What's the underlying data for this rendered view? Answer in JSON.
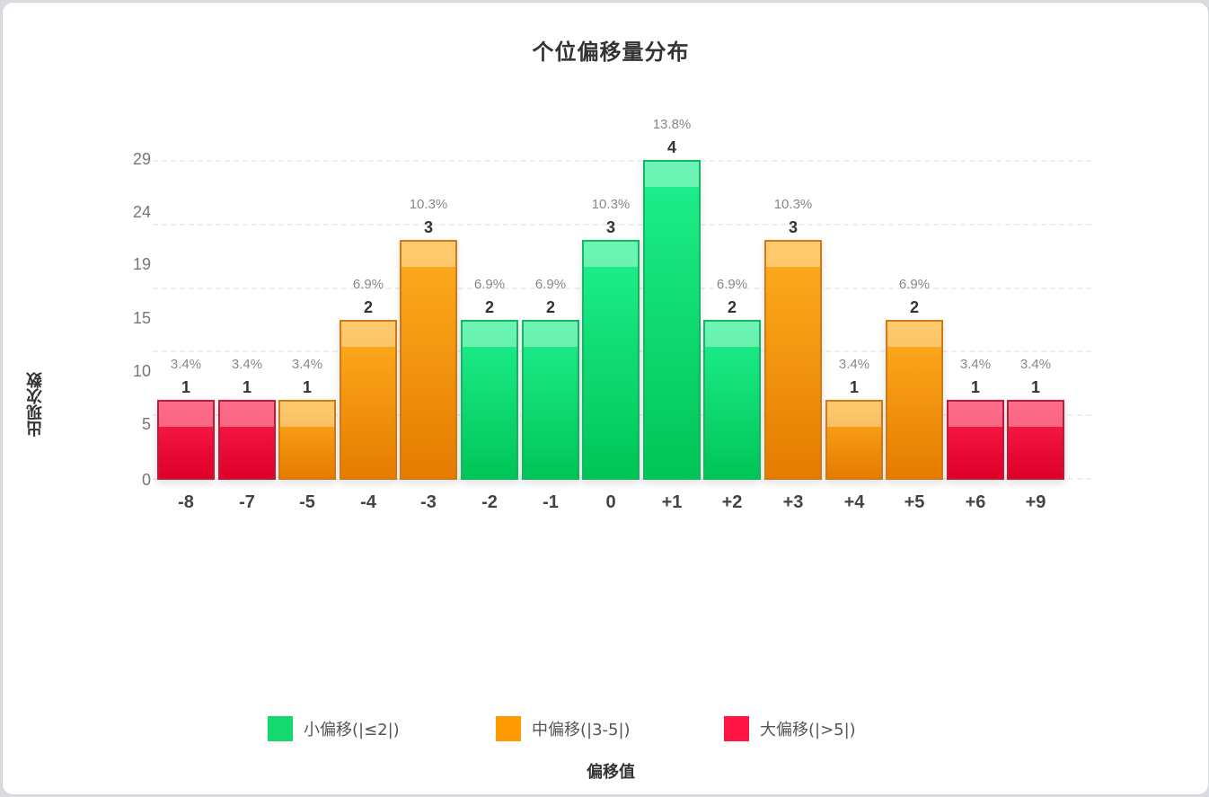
{
  "chart_data": {
    "type": "bar",
    "title": "个位偏移量分布",
    "xlabel": "偏移值",
    "ylabel": "出现次数",
    "y_tick_labels": [
      "0",
      "5",
      "10",
      "15",
      "19",
      "24",
      "29"
    ],
    "categories": [
      "-8",
      "-7",
      "-5",
      "-4",
      "-3",
      "-2",
      "-1",
      "0",
      "+1",
      "+2",
      "+3",
      "+4",
      "+5",
      "+6",
      "+9"
    ],
    "values": [
      1,
      1,
      1,
      2,
      3,
      2,
      2,
      3,
      4,
      2,
      3,
      1,
      2,
      1,
      1
    ],
    "percentages": [
      "3.4%",
      "3.4%",
      "3.4%",
      "6.9%",
      "10.3%",
      "6.9%",
      "6.9%",
      "10.3%",
      "13.8%",
      "6.9%",
      "10.3%",
      "3.4%",
      "6.9%",
      "3.4%",
      "3.4%"
    ],
    "groups": [
      "red",
      "red",
      "orange",
      "orange",
      "orange",
      "green",
      "green",
      "green",
      "green",
      "green",
      "orange",
      "orange",
      "orange",
      "red",
      "red"
    ],
    "grid": true,
    "legend_position": "bottom",
    "legend": [
      {
        "label": "小偏移(|≤2|)",
        "color": "#14d96e",
        "key": "green"
      },
      {
        "label": "中偏移(|3-5|)",
        "color": "#ff9a00",
        "key": "orange"
      },
      {
        "label": "大偏移(|>5|)",
        "color": "#ff1443",
        "key": "red"
      }
    ]
  }
}
